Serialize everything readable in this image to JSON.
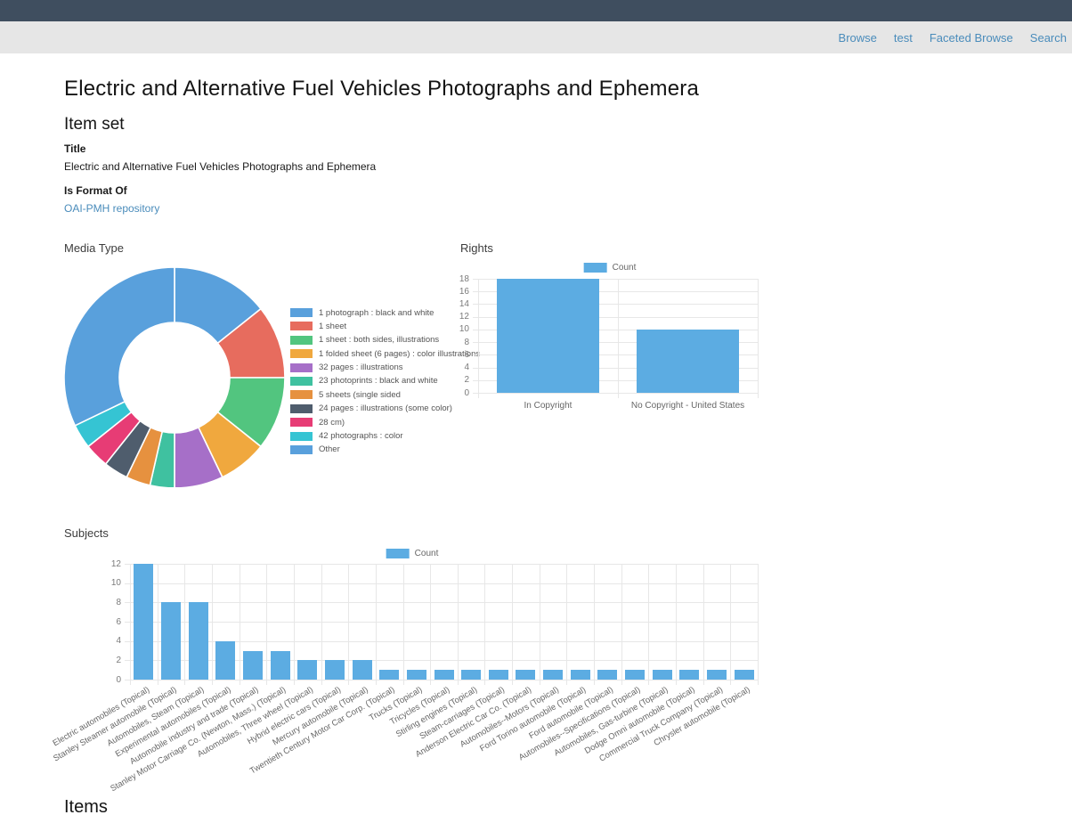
{
  "nav": {
    "links": [
      "Browse",
      "test",
      "Faceted Browse",
      "Search"
    ]
  },
  "page": {
    "title": "Electric and Alternative Fuel Vehicles Photographs and Ephemera",
    "section_heading": "Item set",
    "properties": [
      {
        "label": "Title",
        "value": "Electric and Alternative Fuel Vehicles Photographs and Ephemera"
      },
      {
        "label": "Is Format Of",
        "value": "OAI-PMH repository"
      }
    ],
    "items_heading": "Items"
  },
  "colors": {
    "topbar": "#3f4e5f",
    "navbar_bg": "#e6e6e6",
    "link_blue": "#4a8cbb",
    "bar_blue": "#5cace2",
    "grid": "#e7e7e7"
  },
  "chart_data": [
    {
      "type": "pie",
      "variant": "donut",
      "title": "Media Type",
      "legend_position": "right",
      "labels": [
        "1 photograph : black and white",
        "1 sheet",
        "1 sheet : both sides, illustrations",
        "1 folded sheet (6 pages) : color illustrations",
        "32 pages : illustrations",
        "23 photoprints : black and white",
        "5 sheets (single sided",
        "24 pages : illustrations (some color)",
        "28 cm)",
        "42 photographs : color",
        "Other"
      ],
      "values": [
        4,
        3,
        3,
        2,
        2,
        1,
        1,
        1,
        1,
        1,
        9
      ],
      "colors": [
        "#59a0dc",
        "#e76c5e",
        "#52c57f",
        "#f0a83e",
        "#a66fc8",
        "#3fc1a0",
        "#e6913f",
        "#4f5d6d",
        "#e73c75",
        "#35c4d3",
        "#59a0dc"
      ]
    },
    {
      "type": "bar",
      "title": "Rights",
      "legend_label": "Count",
      "legend_position": "top",
      "categories": [
        "In Copyright",
        "No Copyright - United States"
      ],
      "values": [
        18,
        10
      ],
      "ylim": [
        0,
        18
      ],
      "ytick_step": 2,
      "grid": true,
      "bar_color": "#5cace2"
    },
    {
      "type": "bar",
      "title": "Subjects",
      "legend_label": "Count",
      "legend_position": "top",
      "categories": [
        "Electric automobiles (Topical)",
        "Stanley Steamer automobile (Topical)",
        "Automobiles, Steam (Topical)",
        "Experimental automobiles (Topical)",
        "Automobile industry and trade (Topical)",
        "Stanley Motor Carriage Co. (Newton, Mass.) (Topical)",
        "Automobiles, Three wheel (Topical)",
        "Hybrid electric cars (Topical)",
        "Mercury automobile (Topical)",
        "Twentieth Century Motor Car Corp. (Topical)",
        "Trucks (Topical)",
        "Tricycles (Topical)",
        "Stirling engines (Topical)",
        "Steam-carriages (Topical)",
        "Anderson Electric Car Co. (Topical)",
        "Automobiles--Motors (Topical)",
        "Ford Torino automobile (Topical)",
        "Ford automobile (Topical)",
        "Automobiles--Specifications (Topical)",
        "Automobiles, Gas-turbine (Topical)",
        "Dodge Omni automobile (Topical)",
        "Commercial Truck Company (Topical)",
        "Chrysler automobile (Topical)"
      ],
      "values": [
        12,
        8,
        8,
        4,
        3,
        3,
        2,
        2,
        2,
        1,
        1,
        1,
        1,
        1,
        1,
        1,
        1,
        1,
        1,
        1,
        1,
        1,
        1
      ],
      "ylim": [
        0,
        12
      ],
      "ytick_step": 2,
      "grid": true,
      "bar_color": "#5cace2",
      "x_tick_rotation": -30
    }
  ]
}
